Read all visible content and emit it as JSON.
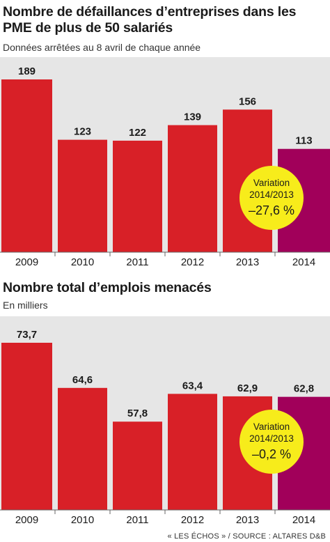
{
  "source": "« LES ÉCHOS » / SOURCE : ALTARES D&B",
  "colors": {
    "bar": "#d82027",
    "highlight": "#a1005a",
    "badge": "#f7ec1b",
    "band": "#e6e6e6"
  },
  "chart_data": [
    {
      "type": "bar",
      "title": "Nombre de défaillances d’entreprises dans les PME de plus de 50 salariés",
      "subtitle": "Données arrêtées au 8 avril de chaque année",
      "categories": [
        "2009",
        "2010",
        "2011",
        "2012",
        "2013",
        "2014"
      ],
      "values": [
        189,
        123,
        122,
        139,
        156,
        113
      ],
      "labels": [
        "189",
        "123",
        "122",
        "139",
        "156",
        "113"
      ],
      "highlight_index": 5,
      "ylim": [
        0,
        189
      ],
      "badge": {
        "label": "Variation",
        "period": "2014/2013",
        "value": "–27,6 %"
      }
    },
    {
      "type": "bar",
      "title": "Nombre total d’emplois menacés",
      "subtitle": "En milliers",
      "categories": [
        "2009",
        "2010",
        "2011",
        "2012",
        "2013",
        "2014"
      ],
      "values": [
        73.7,
        64.6,
        57.8,
        63.4,
        62.9,
        62.8
      ],
      "labels": [
        "73,7",
        "64,6",
        "57,8",
        "63,4",
        "62,9",
        "62,8"
      ],
      "highlight_index": 5,
      "ylim": [
        40,
        73.7
      ],
      "badge": {
        "label": "Variation",
        "period": "2014/2013",
        "value": "–0,2 %"
      }
    }
  ]
}
